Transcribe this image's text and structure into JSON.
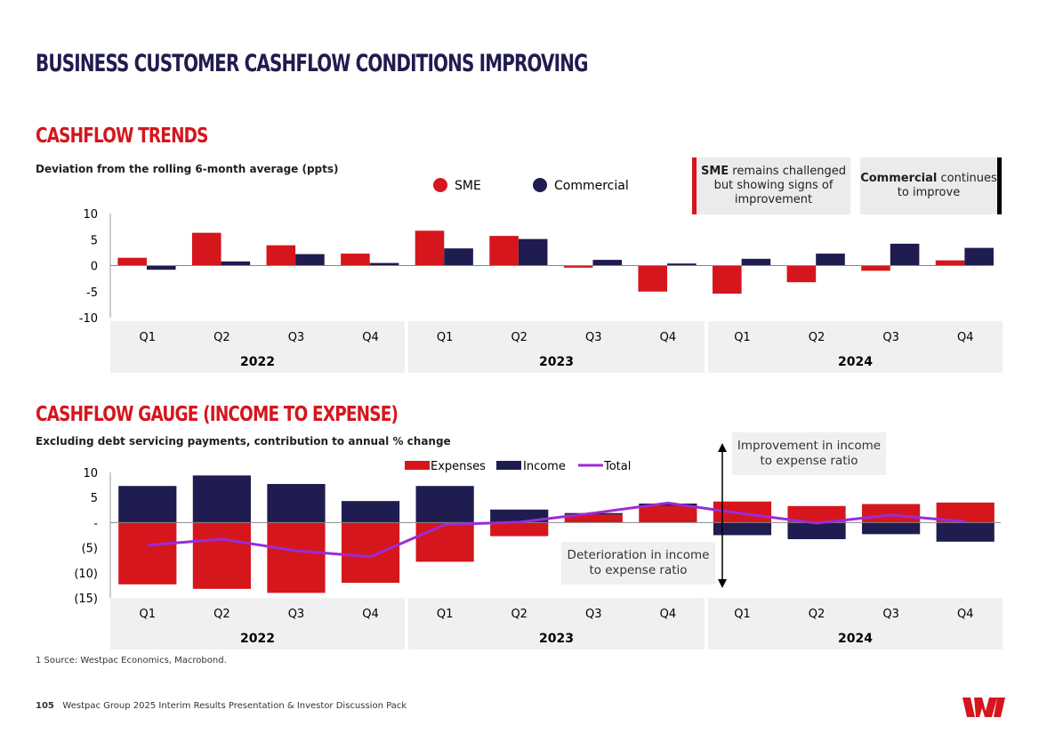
{
  "title": "BUSINESS CUSTOMER CASHFLOW CONDITIONS IMPROVING",
  "colors": {
    "sme": "#d5161c",
    "commercial": "#1f1c4f",
    "total": "#9b2bd6",
    "band": "#f0f0f0"
  },
  "chart_data": [
    {
      "type": "bar",
      "title": "CASHFLOW TRENDS",
      "subtitle": "Deviation from the rolling 6-month average (ppts)",
      "categories": [
        "Q1",
        "Q2",
        "Q3",
        "Q4",
        "Q1",
        "Q2",
        "Q3",
        "Q4",
        "Q1",
        "Q2",
        "Q3",
        "Q4"
      ],
      "groups": [
        "2022",
        "2023",
        "2024"
      ],
      "ylim": [
        -10,
        10
      ],
      "yticks": [
        "10",
        "5",
        "0",
        "-5",
        "-10"
      ],
      "legend": "top-center",
      "series": [
        {
          "name": "SME",
          "values": [
            1.5,
            6.3,
            3.9,
            2.3,
            6.7,
            5.7,
            -0.4,
            -5.0,
            -5.4,
            -3.2,
            -1.0,
            1.0
          ]
        },
        {
          "name": "Commercial",
          "values": [
            -0.8,
            0.8,
            2.2,
            0.5,
            3.3,
            5.1,
            1.1,
            0.4,
            1.3,
            2.3,
            4.2,
            3.4
          ]
        }
      ]
    },
    {
      "type": "bar",
      "stacked": true,
      "title": "CASHFLOW GAUGE (INCOME TO EXPENSE)",
      "subtitle": "Excluding debt servicing payments, contribution to annual % change",
      "categories": [
        "Q1",
        "Q2",
        "Q3",
        "Q4",
        "Q1",
        "Q2",
        "Q3",
        "Q4",
        "Q1",
        "Q2",
        "Q3",
        "Q4"
      ],
      "groups": [
        "2022",
        "2023",
        "2024"
      ],
      "ylim": [
        -15,
        10
      ],
      "yticks": [
        "10",
        "5",
        "-",
        "(5)",
        "(10)",
        "(15)"
      ],
      "legend": "top-center",
      "series": [
        {
          "name": "Expenses",
          "values": [
            -12.3,
            -13.2,
            -14.0,
            -12.0,
            -7.8,
            -2.7,
            1.6,
            3.3,
            4.2,
            3.3,
            3.7,
            4.0
          ]
        },
        {
          "name": "Income",
          "values": [
            7.3,
            9.4,
            7.7,
            4.3,
            7.3,
            2.6,
            0.3,
            0.5,
            -2.5,
            -3.3,
            -2.3,
            -3.8
          ]
        },
        {
          "name": "Total",
          "type": "line",
          "values": [
            -4.5,
            -3.3,
            -5.6,
            -6.8,
            -0.4,
            0.1,
            1.9,
            3.9,
            1.8,
            -0.1,
            1.5,
            0.2
          ]
        }
      ]
    }
  ],
  "annotations": {
    "sme_bold": "SME",
    "sme_rest": " remains challenged but showing signs of improvement",
    "com_bold": "Commercial",
    "com_rest": " continues to improve",
    "improve": "Improvement in income to expense ratio",
    "deteriorate": "Deterioration in income to expense ratio"
  },
  "source": "1 Source: Westpac Economics, Macrobond.",
  "footer": {
    "page": "105",
    "text": "Westpac Group 2025 Interim Results Presentation & Investor Discussion Pack"
  }
}
